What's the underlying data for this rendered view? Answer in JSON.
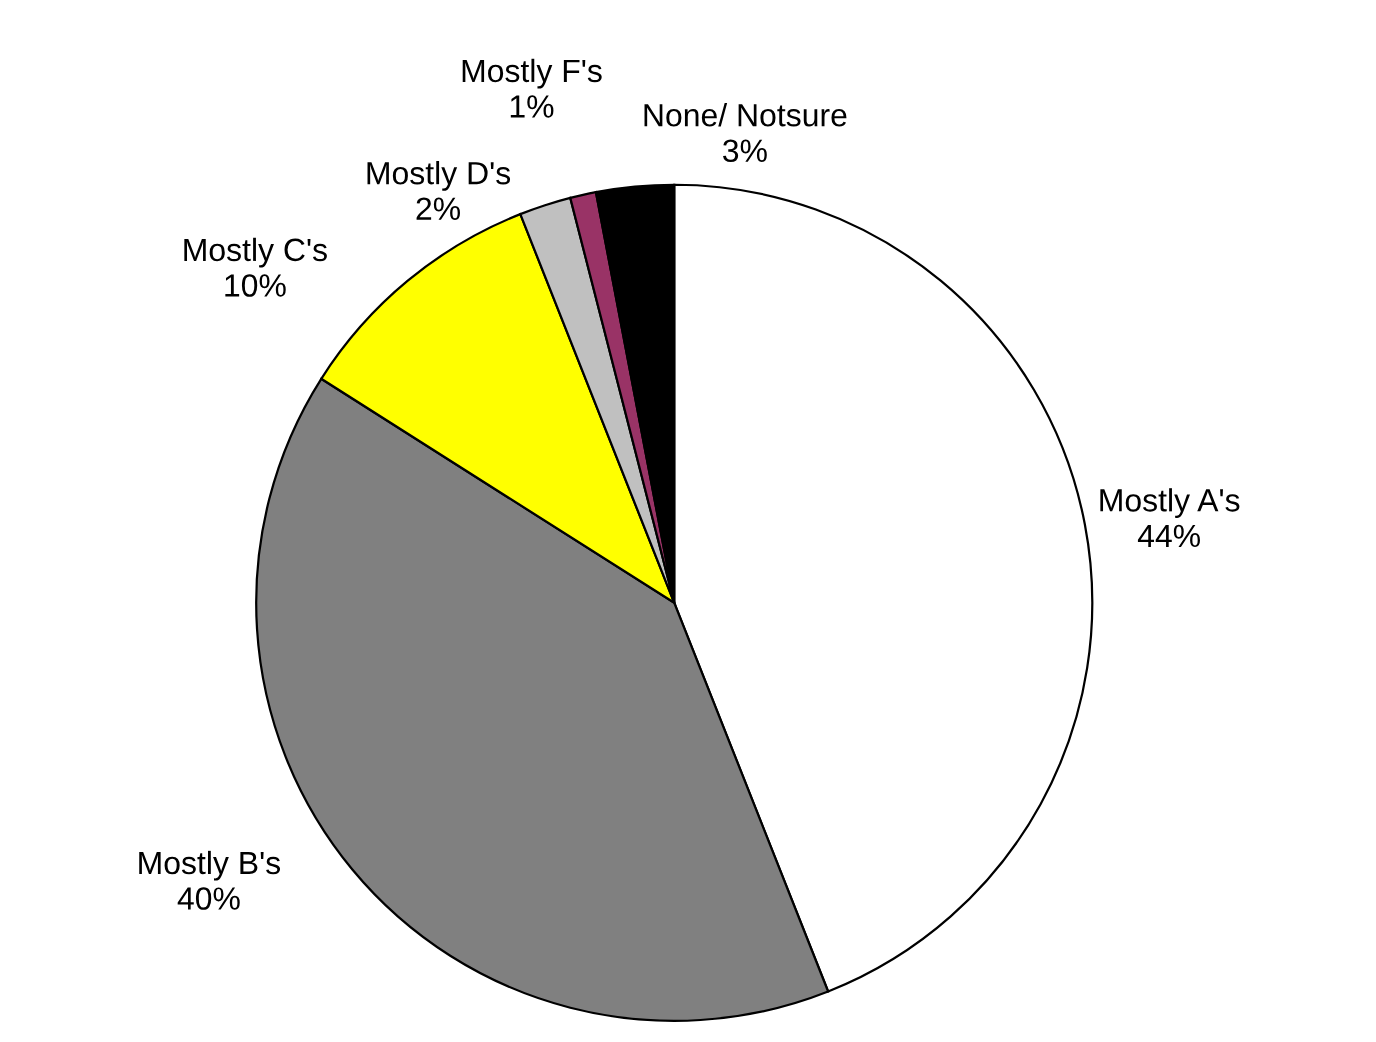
{
  "chart_data": {
    "type": "pie",
    "categories": [
      "Mostly A's",
      "Mostly B's",
      "Mostly C's",
      "Mostly D's",
      "Mostly F's",
      "None/ Notsure"
    ],
    "values": [
      44,
      40,
      10,
      2,
      1,
      3
    ],
    "value_labels": [
      "44%",
      "40%",
      "10%",
      "2%",
      "1%",
      "3%"
    ],
    "colors": [
      "#ffffff",
      "#808080",
      "#ffff00",
      "#c0c0c0",
      "#993366",
      "#000000"
    ]
  }
}
